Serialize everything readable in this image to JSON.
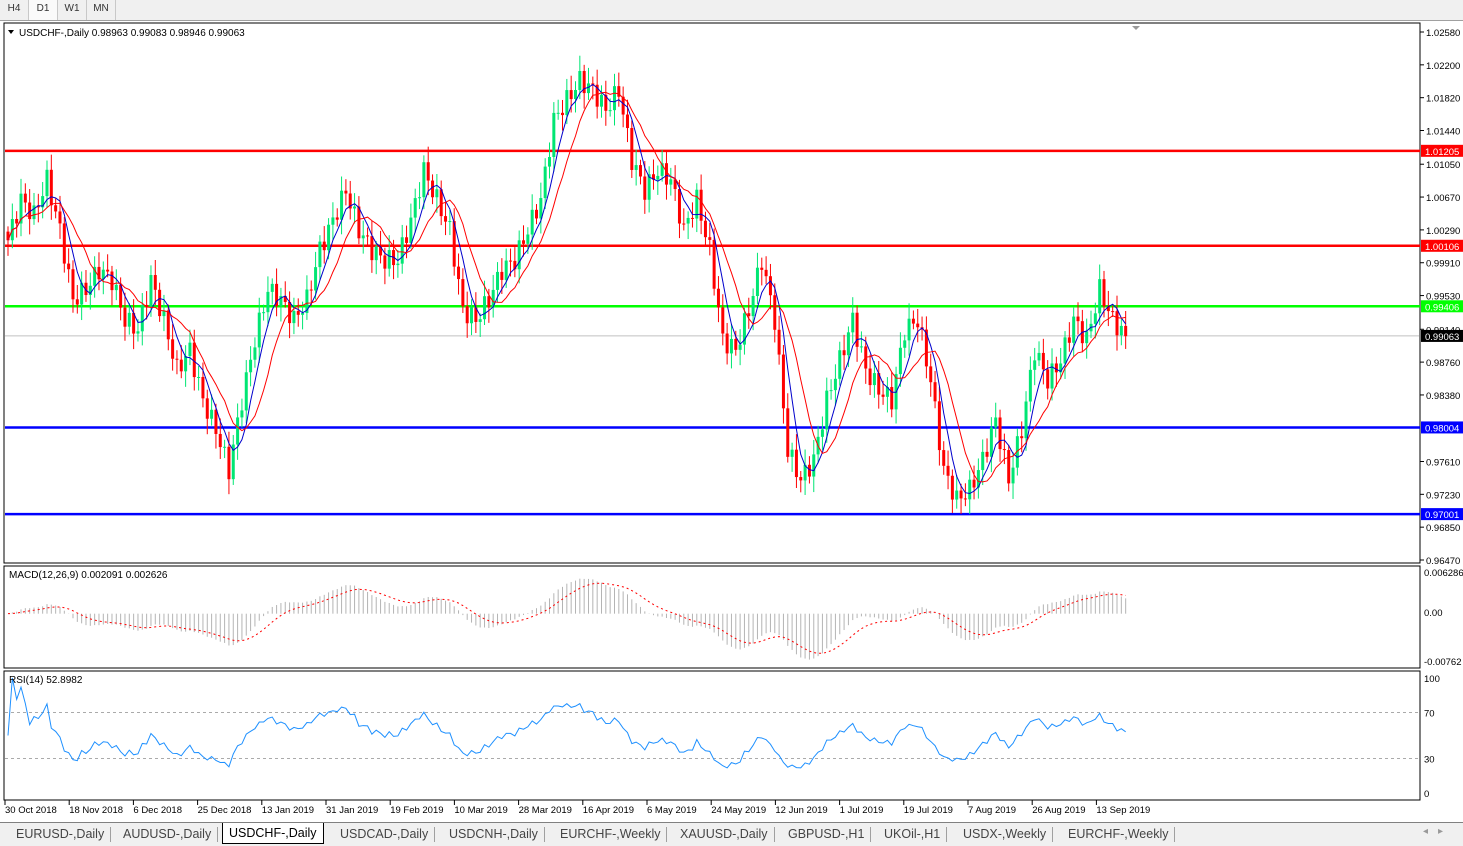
{
  "timeframes": [
    {
      "label": "H4",
      "active": false
    },
    {
      "label": "D1",
      "active": true
    },
    {
      "label": "W1",
      "active": false
    },
    {
      "label": "MN",
      "active": false
    }
  ],
  "chart": {
    "header": "USDCHF-,Daily  0.98963 0.99083 0.98946 0.99063",
    "symbol": "USDCHF-,Daily",
    "ohlc": {
      "open": "0.98963",
      "high": "0.99083",
      "low": "0.98946",
      "close": "0.99063"
    },
    "price_axis": {
      "min": 0.9647,
      "max": 1.0258,
      "ticks": [
        "1.02580",
        "1.02200",
        "1.01820",
        "1.01440",
        "1.01050",
        "1.00670",
        "1.00290",
        "0.99910",
        "0.99530",
        "0.99140",
        "0.98760",
        "0.98380",
        "0.97610",
        "0.97230",
        "0.96850",
        "0.96470"
      ]
    },
    "levels": [
      {
        "value": 1.01205,
        "label": "1.01205",
        "color": "#ff0000"
      },
      {
        "value": 1.00106,
        "label": "1.00106",
        "color": "#ff0000"
      },
      {
        "value": 0.99406,
        "label": "0.99406",
        "color": "#00ff00"
      },
      {
        "value": 0.98004,
        "label": "0.98004",
        "color": "#0000ff"
      },
      {
        "value": 0.97001,
        "label": "0.97001",
        "color": "#0000ff"
      }
    ],
    "current_price": {
      "value": 0.99063,
      "label": "0.99063",
      "color": "#000000"
    },
    "colors": {
      "bull": "#00e673",
      "bear": "#ff0000",
      "ma_fast": "#0000cc",
      "ma_slow": "#ff0000",
      "macd_hist": "#b4b4b4",
      "macd_signal": "#ff0000",
      "rsi": "#1e90ff"
    },
    "x_axis": [
      "30 Oct 2018",
      "18 Nov 2018",
      "6 Dec 2018",
      "25 Dec 2018",
      "13 Jan 2019",
      "31 Jan 2019",
      "19 Feb 2019",
      "10 Mar 2019",
      "28 Mar 2019",
      "16 Apr 2019",
      "6 May 2019",
      "24 May 2019",
      "12 Jun 2019",
      "1 Jul 2019",
      "19 Jul 2019",
      "7 Aug 2019",
      "26 Aug 2019",
      "13 Sep 2019"
    ]
  },
  "macd": {
    "label": "MACD(12,26,9) 0.002091 0.002626",
    "max_label": "0.006286",
    "zero_label": "0.00",
    "min_label": "-0.00762",
    "max": 0.006286,
    "min": -0.00762
  },
  "rsi": {
    "label": "RSI(14) 52.8982",
    "ticks": [
      "100",
      "70",
      "30",
      "0"
    ]
  },
  "chart_data": {
    "type": "candlestick",
    "approx_closes": [
      1.0017,
      1.0064,
      1.0046,
      1.0087,
      1.0029,
      0.9948,
      0.996,
      0.9983,
      0.9971,
      0.9925,
      0.9913,
      0.9971,
      0.9925,
      0.9867,
      0.989,
      0.9832,
      0.9798,
      0.9751,
      0.9832,
      0.9902,
      0.996,
      0.9948,
      0.9925,
      0.9948,
      1.0006,
      1.004,
      1.0075,
      1.0029,
      1.0006,
      0.9994,
      0.9994,
      1.004,
      1.0098,
      1.0064,
      1.0029,
      0.9936,
      0.9925,
      0.9948,
      0.9983,
      0.9994,
      1.0029,
      1.0064,
      1.0156,
      1.0179,
      1.0202,
      1.0191,
      1.0168,
      1.0191,
      1.011,
      1.0075,
      1.0098,
      1.0087,
      1.0029,
      1.0064,
      1.0006,
      0.9902,
      0.989,
      0.9936,
      0.9994,
      0.9925,
      0.9774,
      0.974,
      0.9763,
      0.9832,
      0.9878,
      0.9925,
      0.9867,
      0.9844,
      0.9832,
      0.9913,
      0.9925,
      0.9855,
      0.9751,
      0.9717,
      0.9728,
      0.9763,
      0.9809,
      0.974,
      0.9798,
      0.989,
      0.9855,
      0.9878,
      0.9925,
      0.9902,
      0.996,
      0.9925,
      0.9906
    ]
  }
}
